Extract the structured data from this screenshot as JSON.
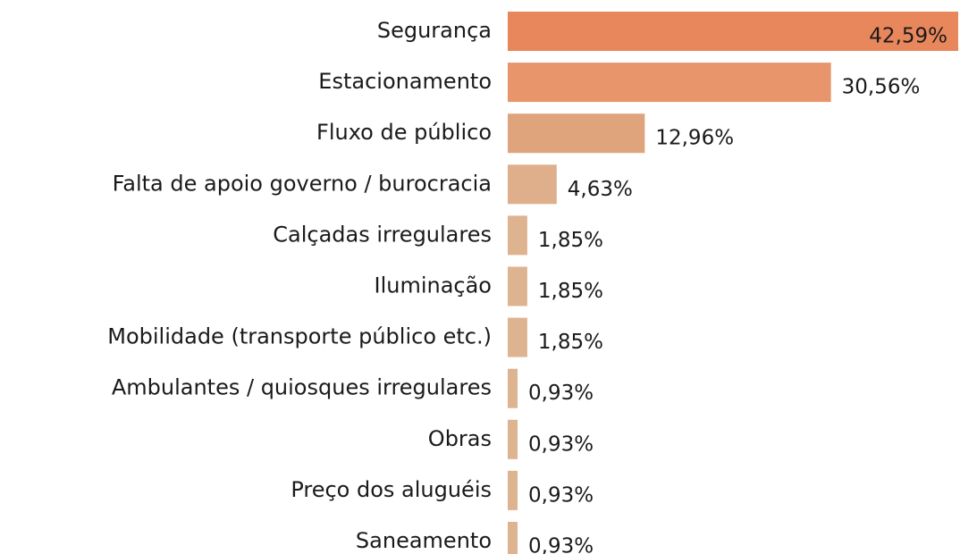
{
  "chart_data": {
    "type": "hbar",
    "categories": [
      "Segurança",
      "Estacionamento",
      "Fluxo de público",
      "Falta de apoio governo / burocracia",
      "Calçadas irregulares",
      "Iluminação",
      "Mobilidade (transporte público etc.)",
      "Ambulantes / quiosques irregulares",
      "Obras",
      "Preço dos aluguéis",
      "Saneamento"
    ],
    "values": [
      42.59,
      30.56,
      12.96,
      4.63,
      1.85,
      1.85,
      1.85,
      0.93,
      0.93,
      0.93,
      0.93
    ],
    "value_labels": [
      "42,59%",
      "30,56%",
      "12,96%",
      "4,63%",
      "1,85%",
      "1,85%",
      "1,85%",
      "0,93%",
      "0,93%",
      "0,93%",
      "0,93%"
    ],
    "colors": [
      "#e8875c",
      "#e8956b",
      "#e0a47d",
      "#dfae8b",
      "#deb390",
      "#deb390",
      "#deb390",
      "#deb390",
      "#deb390",
      "#deb390",
      "#deb390"
    ]
  }
}
